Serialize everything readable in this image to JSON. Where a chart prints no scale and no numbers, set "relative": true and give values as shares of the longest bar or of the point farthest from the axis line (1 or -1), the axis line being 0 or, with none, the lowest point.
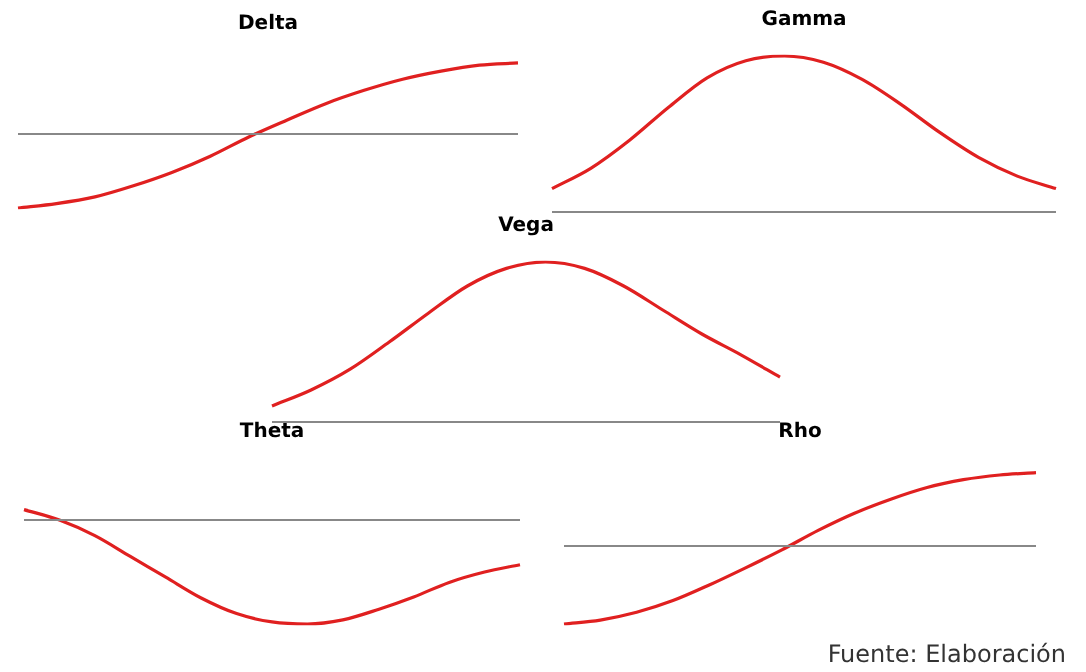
{
  "chart_data": [
    {
      "type": "line",
      "title": "Delta",
      "relative": true,
      "categories": [
        null,
        null,
        null,
        null,
        null,
        null,
        null,
        null,
        null,
        null,
        null,
        null,
        null,
        null
      ],
      "marker": "none",
      "legend": false,
      "series": [
        {
          "color": "#e02020",
          "values": [
            -1,
            -0.94,
            -0.85,
            -0.7,
            -0.52,
            -0.3,
            -0.04,
            0.19,
            0.41,
            0.59,
            0.74,
            0.85,
            0.93,
            0.96
          ]
        }
      ]
    },
    {
      "type": "line",
      "title": "Gamma",
      "relative": true,
      "categories": [
        null,
        null,
        null,
        null,
        null,
        null,
        null,
        null,
        null,
        null,
        null,
        null,
        null,
        null
      ],
      "marker": "none",
      "legend": false,
      "series": [
        {
          "color": "#e02020",
          "values": [
            0.15,
            0.28,
            0.46,
            0.67,
            0.86,
            0.97,
            1.0,
            0.96,
            0.85,
            0.69,
            0.51,
            0.35,
            0.23,
            0.15
          ]
        }
      ]
    },
    {
      "type": "line",
      "title": "Vega",
      "relative": true,
      "categories": [
        null,
        null,
        null,
        null,
        null,
        null,
        null,
        null,
        null,
        null,
        null,
        null,
        null,
        null
      ],
      "marker": "none",
      "legend": false,
      "series": [
        {
          "color": "#e02020",
          "values": [
            0.1,
            0.2,
            0.33,
            0.5,
            0.68,
            0.85,
            0.96,
            1.0,
            0.96,
            0.85,
            0.7,
            0.55,
            0.42,
            0.28
          ]
        }
      ]
    },
    {
      "type": "line",
      "title": "Theta",
      "relative": true,
      "categories": [
        null,
        null,
        null,
        null,
        null,
        null,
        null,
        null,
        null,
        null,
        null,
        null,
        null,
        null,
        null
      ],
      "marker": "none",
      "legend": false,
      "series": [
        {
          "color": "#e02020",
          "values": [
            0.1,
            0.0,
            -0.15,
            -0.35,
            -0.55,
            -0.75,
            -0.9,
            -0.98,
            -1.0,
            -0.96,
            -0.86,
            -0.74,
            -0.6,
            -0.5,
            -0.43
          ]
        }
      ]
    },
    {
      "type": "line",
      "title": "Rho",
      "relative": true,
      "categories": [
        null,
        null,
        null,
        null,
        null,
        null,
        null,
        null,
        null,
        null,
        null,
        null,
        null,
        null
      ],
      "marker": "none",
      "legend": false,
      "annotations": [
        "Fuente: Elaboración"
      ],
      "series": [
        {
          "color": "#e02020",
          "values": [
            -1,
            -0.95,
            -0.85,
            -0.7,
            -0.5,
            -0.28,
            -0.05,
            0.2,
            0.42,
            0.6,
            0.75,
            0.85,
            0.91,
            0.94
          ]
        }
      ]
    }
  ]
}
